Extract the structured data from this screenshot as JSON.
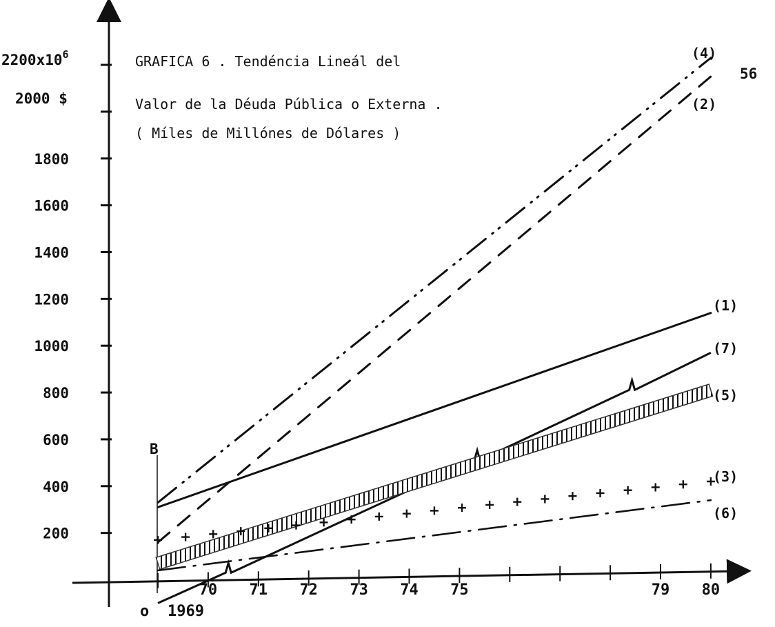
{
  "page_number": "56",
  "chart_data": {
    "type": "line",
    "title_lines": [
      "GRAFICA  6 . Tendéncia Lineál del",
      "Valor de la Déuda Pública o Externa .",
      "( Míles de Millónes de Dólares )"
    ],
    "ylabel_top": "2200x10",
    "ylabel_top_exp": "6",
    "ylabel_unit": "2000 $",
    "origin_label": "o",
    "b_label": "B",
    "y_ticks": [
      {
        "value": 2200,
        "label": ""
      },
      {
        "value": 2000,
        "label": ""
      },
      {
        "value": 1800,
        "label": "1800"
      },
      {
        "value": 1600,
        "label": "1600"
      },
      {
        "value": 1400,
        "label": "1400"
      },
      {
        "value": 1200,
        "label": "1200"
      },
      {
        "value": 1000,
        "label": "1000"
      },
      {
        "value": 800,
        "label": "800"
      },
      {
        "value": 600,
        "label": "600"
      },
      {
        "value": 400,
        "label": "400"
      },
      {
        "value": 200,
        "label": "200"
      }
    ],
    "x_ticks": [
      {
        "value": 1969,
        "label": "1969"
      },
      {
        "value": 1970,
        "label": "70"
      },
      {
        "value": 1971,
        "label": "71"
      },
      {
        "value": 1972,
        "label": "72"
      },
      {
        "value": 1973,
        "label": "73"
      },
      {
        "value": 1974,
        "label": "74"
      },
      {
        "value": 1975,
        "label": "75"
      },
      {
        "value": 1976,
        "label": ""
      },
      {
        "value": 1977,
        "label": ""
      },
      {
        "value": 1978,
        "label": ""
      },
      {
        "value": 1979,
        "label": "79"
      },
      {
        "value": 1980,
        "label": "80"
      }
    ],
    "xlim": [
      1966.8,
      1981.5
    ],
    "ylim": [
      -200,
      2400
    ],
    "series": [
      {
        "name": "(4)",
        "style": "dash-dot-dot",
        "x": [
          1969,
          1980
        ],
        "y": [
          330,
          2230
        ]
      },
      {
        "name": "(2)",
        "style": "dashed",
        "x": [
          1969,
          1980
        ],
        "y": [
          160,
          2150
        ]
      },
      {
        "name": "(1)",
        "style": "solid",
        "x": [
          1969,
          1980
        ],
        "y": [
          310,
          1140
        ]
      },
      {
        "name": "(7)",
        "style": "solid-zigzag",
        "x": [
          1969,
          1980
        ],
        "y": [
          -100,
          970
        ]
      },
      {
        "name": "(5)",
        "style": "hatched",
        "x": [
          1969,
          1980
        ],
        "y": [
          70,
          810
        ]
      },
      {
        "name": "(3)",
        "style": "plus",
        "x": [
          1969,
          1980
        ],
        "y": [
          170,
          420
        ]
      },
      {
        "name": "(6)",
        "style": "dash-dot",
        "x": [
          1969,
          1980
        ],
        "y": [
          40,
          340
        ]
      }
    ]
  }
}
